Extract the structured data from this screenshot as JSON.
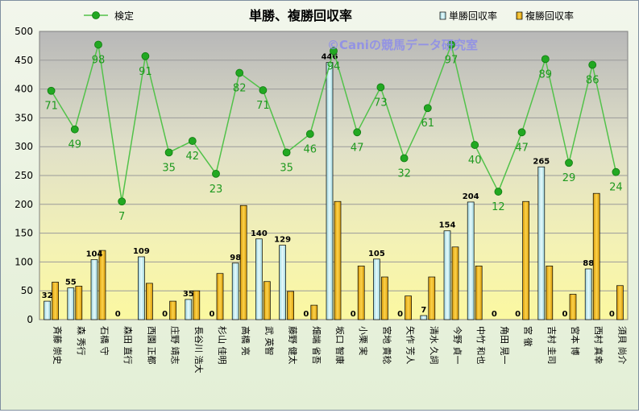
{
  "chart_data": {
    "type": "bar",
    "title": "単勝、複勝回収率",
    "watermark": "©Caniの競馬データ研究室",
    "ylim": [
      0,
      500
    ],
    "yticks": [
      "0",
      "50",
      "100",
      "150",
      "200",
      "250",
      "300",
      "350",
      "400",
      "450",
      "500"
    ],
    "grid": true,
    "legend_position": "top",
    "categories": [
      "斉藤 崇史",
      "森 秀行",
      "石橋 守",
      "森田 直行",
      "西園 正都",
      "庄野 靖志",
      "長谷川 浩大",
      "杉山 佳明",
      "高橋 亮",
      "武 英智",
      "藤野 健太",
      "畑端 省吾",
      "坂口 智康",
      "小栗 実",
      "宮地 貴稔",
      "矢作 芳人",
      "清水 久詞",
      "今野 貞一",
      "中竹 和也",
      "角田 晃一",
      "宮 徹",
      "吉村 圭司",
      "宮本 博",
      "西村 真幸",
      "須貝 尚介"
    ],
    "series": [
      {
        "name": "単勝回収率",
        "values": [
          32,
          55,
          104,
          0,
          109,
          0,
          35,
          0,
          98,
          140,
          129,
          0,
          446,
          0,
          105,
          0,
          7,
          154,
          204,
          0,
          0,
          265,
          0,
          88,
          0
        ],
        "color": "#c8eef0"
      },
      {
        "name": "複勝回収率",
        "values": [
          65,
          58,
          120,
          0,
          63,
          32,
          50,
          80,
          198,
          66,
          49,
          25,
          205,
          93,
          74,
          41,
          74,
          126,
          93,
          0,
          205,
          93,
          44,
          219,
          59
        ],
        "color": "#f0be18"
      },
      {
        "name": "検定",
        "type": "line",
        "values": [
          71,
          49,
          98,
          7,
          91,
          35,
          42,
          23,
          82,
          71,
          35,
          46,
          94,
          47,
          73,
          32,
          61,
          97,
          40,
          12,
          47,
          89,
          29,
          86,
          24
        ],
        "y_on_axis": [
          397,
          330,
          477,
          205,
          457,
          290,
          310,
          253,
          428,
          398,
          290,
          322,
          466,
          325,
          403,
          280,
          367,
          477,
          303,
          222,
          325,
          452,
          272,
          442,
          256
        ],
        "color": "#1fa81f"
      }
    ]
  }
}
